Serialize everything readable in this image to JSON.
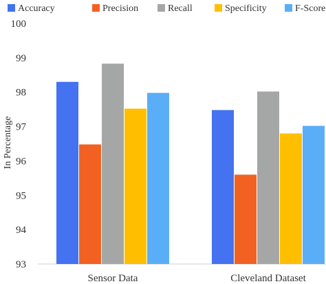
{
  "chart_data": {
    "type": "bar",
    "title": "",
    "xlabel": "",
    "ylabel": "In Percentage",
    "categories": [
      "Sensor Data",
      "Cleveland Dataset"
    ],
    "ylim": [
      93,
      100
    ],
    "yticks": [
      "93",
      "94",
      "95",
      "96",
      "97",
      "98",
      "99",
      "100"
    ],
    "grid": false,
    "legend": "top",
    "series": [
      {
        "name": "Accuracy",
        "color": "#4472F0",
        "values": [
          98.3,
          97.48
        ]
      },
      {
        "name": "Precision",
        "color": "#F26122",
        "values": [
          96.48,
          95.6
        ]
      },
      {
        "name": "Recall",
        "color": "#A5A7A6",
        "values": [
          98.83,
          98.02
        ]
      },
      {
        "name": "Specificity",
        "color": "#FFBF00",
        "values": [
          97.52,
          96.8
        ]
      },
      {
        "name": "F-Score",
        "color": "#5AAEF7",
        "values": [
          97.98,
          97.02
        ]
      }
    ]
  }
}
